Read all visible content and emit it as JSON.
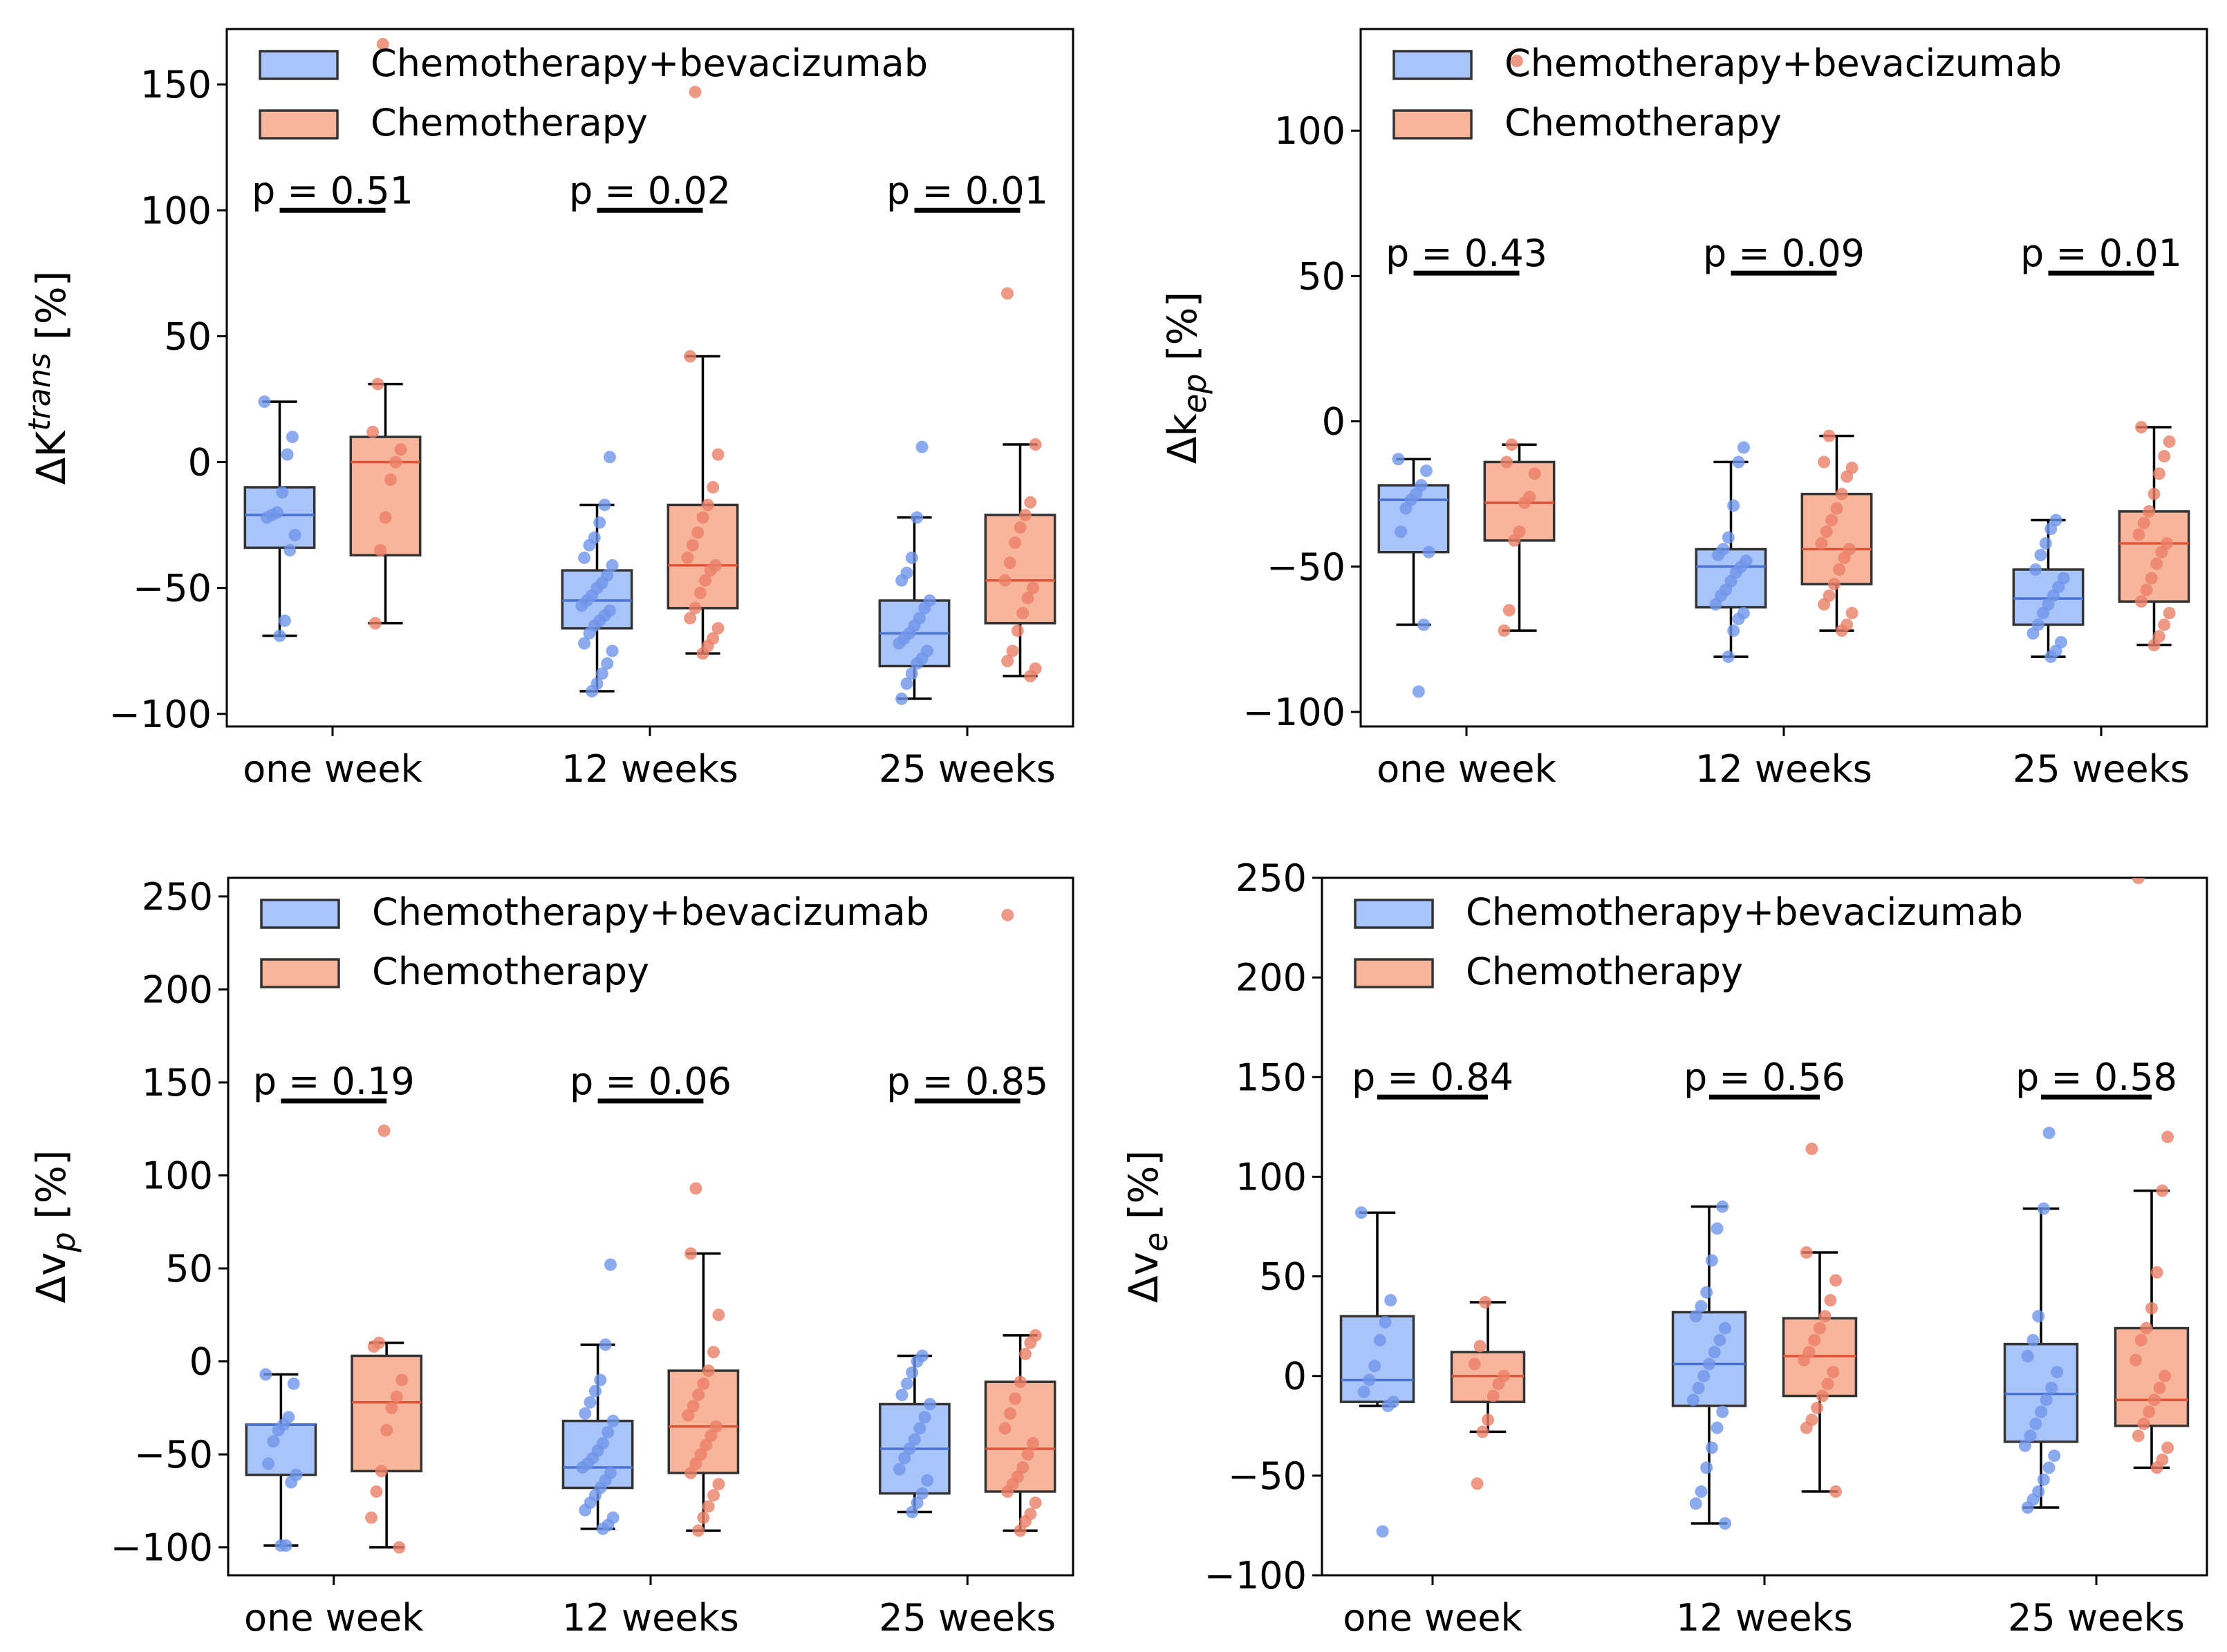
{
  "figure": {
    "colors": {
      "combo_fill": "#a8c4f8",
      "combo_line": "#4a72d4",
      "combo_point": "#6f95ea",
      "chemo_fill": "#f7b69b",
      "chemo_line": "#e0553a",
      "chemo_point": "#ea8066",
      "edge": "#333333",
      "axis": "#000000"
    }
  },
  "chart_data": [
    {
      "type": "box",
      "id": "ktrans",
      "ylabel": "ΔK^trans [%]",
      "ylabel_main": "ΔK",
      "ylabel_sup": "trans",
      "ylabel_sub": "",
      "ylabel_unit": " [%]",
      "categories": [
        "one week",
        "12 weeks",
        "25 weeks"
      ],
      "ylim": [
        -105,
        172
      ],
      "yticks": [
        -100,
        -50,
        0,
        50,
        100,
        150
      ],
      "ytick_labels": [
        "−100",
        "−50",
        "0",
        "50",
        "100",
        "150"
      ],
      "legend": [
        "Chemotherapy+bevacizumab",
        "Chemotherapy"
      ],
      "pvalues": [
        "p = 0.51",
        "p = 0.02",
        "p = 0.01"
      ],
      "p_y": 100,
      "series": [
        {
          "name": "Chemotherapy+bevacizumab",
          "boxes": [
            {
              "q1": -34,
              "median": -21,
              "q3": -10,
              "whislo": -69,
              "whishi": 24,
              "points": [
                24,
                10,
                3,
                -12,
                -20,
                -21,
                -22,
                -29,
                -35,
                -63,
                -69
              ]
            },
            {
              "q1": -66,
              "median": -55,
              "q3": -43,
              "whislo": -91,
              "whishi": -17,
              "points": [
                2,
                -17,
                -24,
                -30,
                -33,
                -38,
                -41,
                -45,
                -48,
                -50,
                -53,
                -55,
                -57,
                -59,
                -61,
                -63,
                -65,
                -68,
                -72,
                -75,
                -80,
                -84,
                -88,
                -91
              ]
            },
            {
              "q1": -81,
              "median": -68,
              "q3": -55,
              "whislo": -94,
              "whishi": -22,
              "points": [
                6,
                -22,
                -38,
                -44,
                -47,
                -55,
                -58,
                -62,
                -65,
                -68,
                -70,
                -72,
                -75,
                -78,
                -80,
                -84,
                -88,
                -94
              ]
            }
          ]
        },
        {
          "name": "Chemotherapy",
          "boxes": [
            {
              "q1": -37,
              "median": 0,
              "q3": 10,
              "whislo": -64,
              "whishi": 31,
              "points": [
                166,
                31,
                12,
                5,
                0,
                -7,
                -22,
                -35,
                -64
              ]
            },
            {
              "q1": -58,
              "median": -41,
              "q3": -17,
              "whislo": -76,
              "whishi": 42,
              "points": [
                147,
                42,
                3,
                -10,
                -17,
                -22,
                -28,
                -33,
                -38,
                -41,
                -43,
                -47,
                -52,
                -58,
                -62,
                -66,
                -70,
                -73,
                -76
              ]
            },
            {
              "q1": -64,
              "median": -47,
              "q3": -21,
              "whislo": -85,
              "whishi": 7,
              "points": [
                67,
                7,
                -16,
                -21,
                -26,
                -32,
                -40,
                -47,
                -50,
                -54,
                -60,
                -67,
                -75,
                -79,
                -82,
                -85
              ]
            }
          ]
        }
      ]
    },
    {
      "type": "box",
      "id": "kep",
      "ylabel": "Δk_ep [%]",
      "ylabel_main": "Δk",
      "ylabel_sup": "",
      "ylabel_sub": "ep",
      "ylabel_unit": " [%]",
      "categories": [
        "one week",
        "12 weeks",
        "25 weeks"
      ],
      "ylim": [
        -105,
        135
      ],
      "yticks": [
        -100,
        -50,
        0,
        50,
        100
      ],
      "ytick_labels": [
        "−100",
        "−50",
        "0",
        "50",
        "100"
      ],
      "legend": [
        "Chemotherapy+bevacizumab",
        "Chemotherapy"
      ],
      "pvalues": [
        "p = 0.43",
        "p = 0.09",
        "p = 0.01"
      ],
      "p_y": 51,
      "series": [
        {
          "name": "Chemotherapy+bevacizumab",
          "boxes": [
            {
              "q1": -45,
              "median": -27,
              "q3": -22,
              "whislo": -70,
              "whishi": -13,
              "points": [
                -13,
                -17,
                -22,
                -25,
                -27,
                -30,
                -38,
                -45,
                -70,
                -93
              ]
            },
            {
              "q1": -64,
              "median": -50,
              "q3": -44,
              "whislo": -81,
              "whishi": -14,
              "points": [
                -9,
                -14,
                -29,
                -40,
                -44,
                -46,
                -48,
                -50,
                -52,
                -55,
                -58,
                -60,
                -63,
                -66,
                -68,
                -72,
                -81
              ]
            },
            {
              "q1": -70,
              "median": -61,
              "q3": -51,
              "whislo": -81,
              "whishi": -34,
              "points": [
                -34,
                -37,
                -42,
                -46,
                -51,
                -54,
                -57,
                -60,
                -63,
                -66,
                -70,
                -73,
                -76,
                -79,
                -81
              ]
            }
          ]
        },
        {
          "name": "Chemotherapy",
          "boxes": [
            {
              "q1": -41,
              "median": -28,
              "q3": -14,
              "whislo": -72,
              "whishi": -8,
              "points": [
                124,
                -8,
                -14,
                -18,
                -26,
                -28,
                -38,
                -41,
                -65,
                -72
              ]
            },
            {
              "q1": -56,
              "median": -44,
              "q3": -25,
              "whislo": -72,
              "whishi": -5,
              "points": [
                -5,
                -14,
                -16,
                -19,
                -25,
                -30,
                -34,
                -38,
                -42,
                -44,
                -47,
                -51,
                -56,
                -60,
                -63,
                -66,
                -70,
                -72
              ]
            },
            {
              "q1": -62,
              "median": -42,
              "q3": -31,
              "whislo": -77,
              "whishi": -2,
              "points": [
                -2,
                -7,
                -12,
                -18,
                -25,
                -31,
                -35,
                -39,
                -42,
                -45,
                -49,
                -54,
                -58,
                -62,
                -66,
                -70,
                -74,
                -77
              ]
            }
          ]
        }
      ]
    },
    {
      "type": "box",
      "id": "vp",
      "ylabel": "Δv_p [%]",
      "ylabel_main": "Δv",
      "ylabel_sup": "",
      "ylabel_sub": "p",
      "ylabel_unit": " [%]",
      "categories": [
        "one week",
        "12 weeks",
        "25 weeks"
      ],
      "ylim": [
        -115,
        260
      ],
      "yticks": [
        -100,
        -50,
        0,
        50,
        100,
        150,
        200,
        250
      ],
      "ytick_labels": [
        "−100",
        "−50",
        "0",
        "50",
        "100",
        "150",
        "200",
        "250"
      ],
      "legend": [
        "Chemotherapy+bevacizumab",
        "Chemotherapy"
      ],
      "pvalues": [
        "p = 0.19",
        "p = 0.06",
        "p = 0.85"
      ],
      "p_y": 140,
      "series": [
        {
          "name": "Chemotherapy+bevacizumab",
          "boxes": [
            {
              "q1": -61,
              "median": -34,
              "q3": -34,
              "whislo": -99,
              "whishi": -7,
              "points": [
                -7,
                -12,
                -30,
                -34,
                -37,
                -43,
                -55,
                -61,
                -65,
                -99,
                -99
              ]
            },
            {
              "q1": -68,
              "median": -57,
              "q3": -32,
              "whislo": -90,
              "whishi": 9,
              "points": [
                52,
                9,
                -10,
                -16,
                -22,
                -28,
                -32,
                -38,
                -44,
                -48,
                -52,
                -55,
                -57,
                -60,
                -64,
                -68,
                -72,
                -76,
                -80,
                -84,
                -88,
                -90
              ]
            },
            {
              "q1": -71,
              "median": -47,
              "q3": -23,
              "whislo": -81,
              "whishi": 3,
              "points": [
                3,
                0,
                -6,
                -12,
                -18,
                -23,
                -30,
                -36,
                -42,
                -47,
                -52,
                -58,
                -64,
                -71,
                -76,
                -81
              ]
            }
          ]
        },
        {
          "name": "Chemotherapy",
          "boxes": [
            {
              "q1": -59,
              "median": -22,
              "q3": 3,
              "whislo": -100,
              "whishi": 10,
              "points": [
                124,
                10,
                8,
                -10,
                -19,
                -25,
                -37,
                -59,
                -70,
                -84,
                -100
              ]
            },
            {
              "q1": -60,
              "median": -35,
              "q3": -5,
              "whislo": -91,
              "whishi": 58,
              "points": [
                93,
                58,
                25,
                5,
                -5,
                -12,
                -18,
                -24,
                -29,
                -35,
                -40,
                -45,
                -50,
                -55,
                -60,
                -66,
                -72,
                -78,
                -84,
                -91
              ]
            },
            {
              "q1": -70,
              "median": -47,
              "q3": -11,
              "whislo": -91,
              "whishi": 14,
              "points": [
                240,
                14,
                10,
                4,
                -11,
                -20,
                -28,
                -36,
                -44,
                -50,
                -57,
                -62,
                -66,
                -70,
                -76,
                -82,
                -86,
                -91
              ]
            }
          ]
        }
      ]
    },
    {
      "type": "box",
      "id": "ve",
      "ylabel": "Δv_e [%]",
      "ylabel_main": "Δv",
      "ylabel_sup": "",
      "ylabel_sub": "e",
      "ylabel_unit": " [%]",
      "categories": [
        "one week",
        "12 weeks",
        "25 weeks"
      ],
      "ylim": [
        -100,
        250
      ],
      "yticks": [
        -100,
        -50,
        0,
        50,
        100,
        150,
        200,
        250
      ],
      "ytick_labels": [
        "−100",
        "−50",
        "0",
        "50",
        "100",
        "150",
        "200",
        "250"
      ],
      "legend": [
        "Chemotherapy+bevacizumab",
        "Chemotherapy"
      ],
      "pvalues": [
        "p = 0.84",
        "p = 0.56",
        "p = 0.58"
      ],
      "p_y": 140,
      "series": [
        {
          "name": "Chemotherapy+bevacizumab",
          "boxes": [
            {
              "q1": -13,
              "median": -2,
              "q3": 30,
              "whislo": -15,
              "whishi": 82,
              "points": [
                82,
                38,
                27,
                18,
                5,
                -2,
                -8,
                -13,
                -15,
                -78
              ]
            },
            {
              "q1": -15,
              "median": 6,
              "q3": 32,
              "whislo": -74,
              "whishi": 85,
              "points": [
                85,
                74,
                58,
                42,
                35,
                30,
                24,
                18,
                12,
                6,
                0,
                -6,
                -12,
                -18,
                -26,
                -36,
                -46,
                -58,
                -64,
                -74
              ]
            },
            {
              "q1": -33,
              "median": -9,
              "q3": 16,
              "whislo": -66,
              "whishi": 84,
              "points": [
                122,
                84,
                30,
                18,
                10,
                2,
                -6,
                -12,
                -18,
                -24,
                -30,
                -35,
                -40,
                -46,
                -52,
                -58,
                -62,
                -66
              ]
            }
          ]
        },
        {
          "name": "Chemotherapy",
          "boxes": [
            {
              "q1": -13,
              "median": 0,
              "q3": 12,
              "whislo": -28,
              "whishi": 37,
              "points": [
                37,
                15,
                6,
                0,
                -4,
                -10,
                -22,
                -28,
                -54
              ]
            },
            {
              "q1": -10,
              "median": 10,
              "q3": 29,
              "whislo": -58,
              "whishi": 62,
              "points": [
                114,
                62,
                48,
                38,
                30,
                24,
                18,
                12,
                8,
                2,
                -4,
                -10,
                -16,
                -22,
                -26,
                -58
              ]
            },
            {
              "q1": -25,
              "median": -12,
              "q3": 24,
              "whislo": -46,
              "whishi": 93,
              "points": [
                250,
                120,
                93,
                52,
                34,
                24,
                18,
                8,
                0,
                -6,
                -12,
                -18,
                -24,
                -30,
                -36,
                -42,
                -46
              ]
            }
          ]
        }
      ]
    }
  ]
}
